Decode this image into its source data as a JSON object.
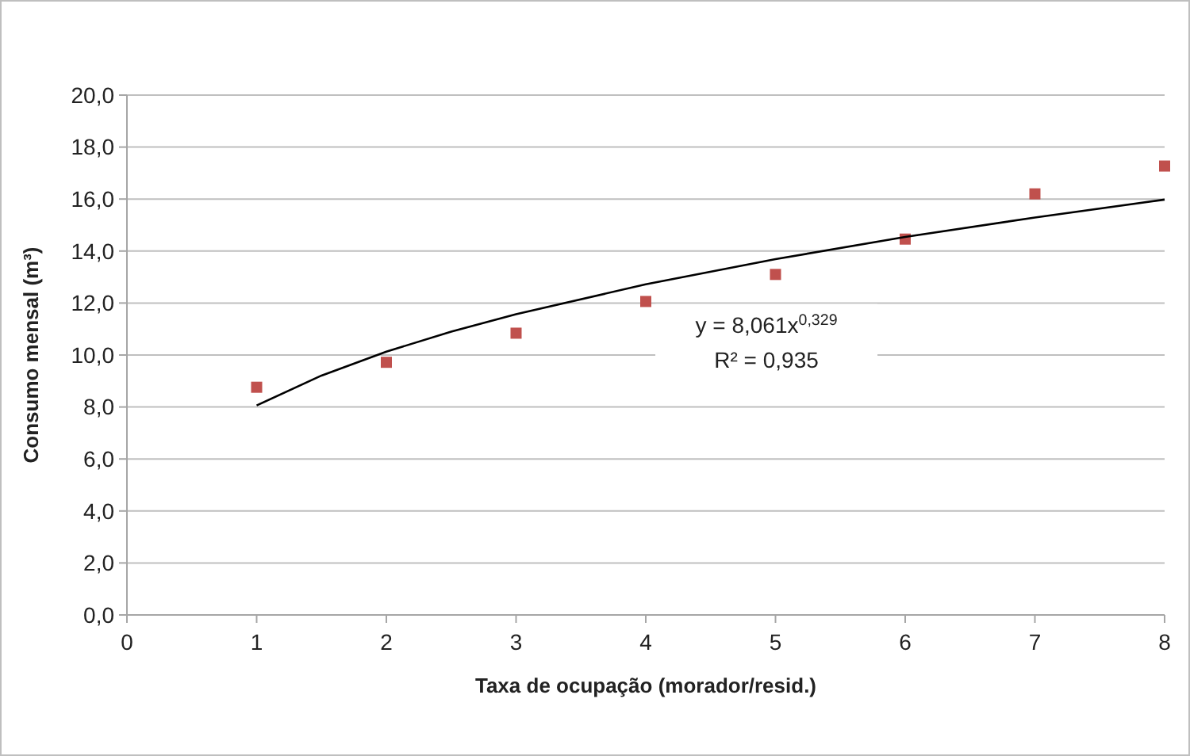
{
  "chart_data": {
    "type": "scatter",
    "xlabel": "Taxa de ocupação (morador/resid.)",
    "ylabel": "Consumo mensal (m³)",
    "xlim": [
      0,
      8
    ],
    "xticks": [
      0,
      1,
      2,
      3,
      4,
      5,
      6,
      7,
      8
    ],
    "ylim": [
      0,
      20
    ],
    "yticks": [
      {
        "value": 0,
        "label": "0,0"
      },
      {
        "value": 2,
        "label": "2,0"
      },
      {
        "value": 4,
        "label": "4,0"
      },
      {
        "value": 6,
        "label": "6,0"
      },
      {
        "value": 8,
        "label": "8,0"
      },
      {
        "value": 10,
        "label": "10,0"
      },
      {
        "value": 12,
        "label": "12,0"
      },
      {
        "value": 14,
        "label": "14,0"
      },
      {
        "value": 16,
        "label": "16,0"
      },
      {
        "value": 18,
        "label": "18,0"
      },
      {
        "value": 20,
        "label": "20,0"
      }
    ],
    "grid": "y",
    "series": [
      {
        "color": "#c0504d",
        "marker": "square",
        "x": [
          1,
          2,
          3,
          4,
          5,
          6,
          7,
          8
        ],
        "values": [
          8.76,
          9.72,
          10.84,
          12.06,
          13.1,
          14.46,
          16.2,
          17.27
        ]
      },
      {
        "type": "line",
        "color": "#000000",
        "marker": "none",
        "line_style": "solid",
        "x": [
          1,
          1.5,
          2,
          2.5,
          3,
          4,
          5,
          6,
          7,
          8
        ],
        "values": [
          8.06,
          9.21,
          10.13,
          10.9,
          11.57,
          12.72,
          13.69,
          14.54,
          15.29,
          15.98
        ]
      }
    ],
    "annotations": [
      "y = 8,061x$^{0,329}$",
      "R² = 0,935"
    ]
  }
}
